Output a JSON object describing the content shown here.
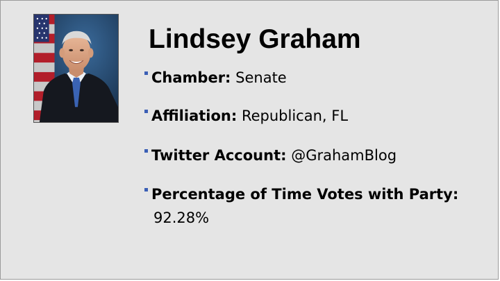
{
  "slide": {
    "title": "Lindsey Graham",
    "bullets": [
      {
        "label": "Chamber:",
        "value": "Senate"
      },
      {
        "label": "Affiliation:",
        "value": "Republican, FL"
      },
      {
        "label": "Twitter Account:",
        "value": "@GrahamBlog"
      },
      {
        "label": "Percentage of Time Votes with Party:",
        "value": "92.28%"
      }
    ],
    "bullet_color": "#3b5fb5",
    "background_color": "#e5e5e5"
  }
}
